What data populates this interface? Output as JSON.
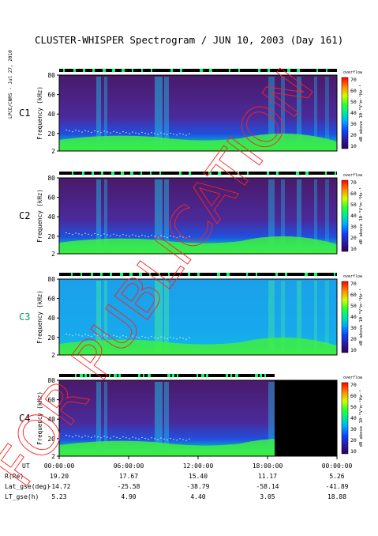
{
  "title": "CLUSTER-WHISPER Spectrogram / JUN 10, 2003 (Day 161)",
  "side_label": "LPCE/CNRS - Jul 27, 2010",
  "watermark": "FOR PUBLICATION",
  "colorbar": {
    "label": "dB above 10⁻⁸V²m⁻²Hz⁻¹",
    "top_label": "overflow",
    "ticks": [
      "10",
      "20",
      "30",
      "40",
      "50",
      "60",
      "70"
    ]
  },
  "chart_data": {
    "type": "heatmap",
    "title": "CLUSTER-WHISPER Spectrogram / JUN 10, 2003 (Day 161)",
    "ylabel": "Frequency (kHz)",
    "ylim": [
      2,
      80
    ],
    "yticks": [
      "2",
      "20",
      "40",
      "60",
      "80"
    ],
    "clim": [
      10,
      70
    ],
    "panels": [
      {
        "name": "C1",
        "color": "#000000"
      },
      {
        "name": "C2",
        "color": "#000000"
      },
      {
        "name": "C3",
        "color": "#00a050"
      },
      {
        "name": "C4",
        "color": "#000000"
      }
    ],
    "x_ticks": [
      "00:00:00",
      "06:00:00",
      "12:00:00",
      "18:00:00",
      "00:00:00"
    ],
    "ephemeris": [
      {
        "label": "UT",
        "values": [
          "00:00:00",
          "06:00:00",
          "12:00:00",
          "18:00:00",
          "00:00:00"
        ]
      },
      {
        "label": "R(Re)",
        "values": [
          "19.20",
          "17.67",
          "15.40",
          "11.17",
          "5.26"
        ]
      },
      {
        "label": "Lat_gse(deg)",
        "values": [
          "-14.72",
          "-25.58",
          "-38.79",
          "-58.14",
          "-41.89"
        ]
      },
      {
        "label": "LT_gse(h)",
        "values": [
          "5.23",
          "4.90",
          "4.40",
          "3.05",
          "18.88"
        ]
      }
    ]
  }
}
